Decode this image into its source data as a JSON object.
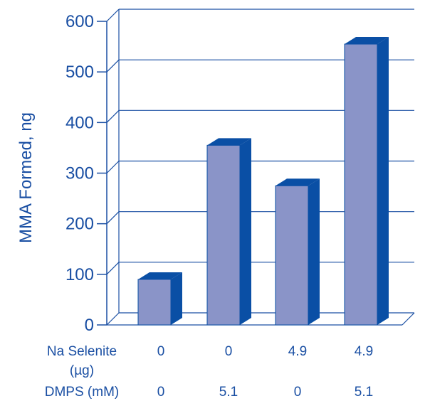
{
  "chart_data": {
    "type": "bar",
    "ylabel": "MMA Formed, ng",
    "ylim": [
      0,
      600
    ],
    "yticks": [
      0,
      100,
      200,
      300,
      400,
      500,
      600
    ],
    "values": [
      90,
      355,
      275,
      555
    ],
    "row_labels": {
      "selenite": [
        "Na Selenite",
        "(µg)"
      ],
      "dmps": "DMPS (mM)"
    },
    "selenite_values": [
      "0",
      "0",
      "4.9",
      "4.9"
    ],
    "dmps_values": [
      "0",
      "5.1",
      "0",
      "5.1"
    ],
    "grid": true,
    "style": "3d-column"
  },
  "colors": {
    "bar_front": "#8a94c8",
    "bar_side": "#0a4fa5",
    "bar_top": "#0a4fa5",
    "axis": "#1a4fa3",
    "text": "#1a4fa3"
  }
}
